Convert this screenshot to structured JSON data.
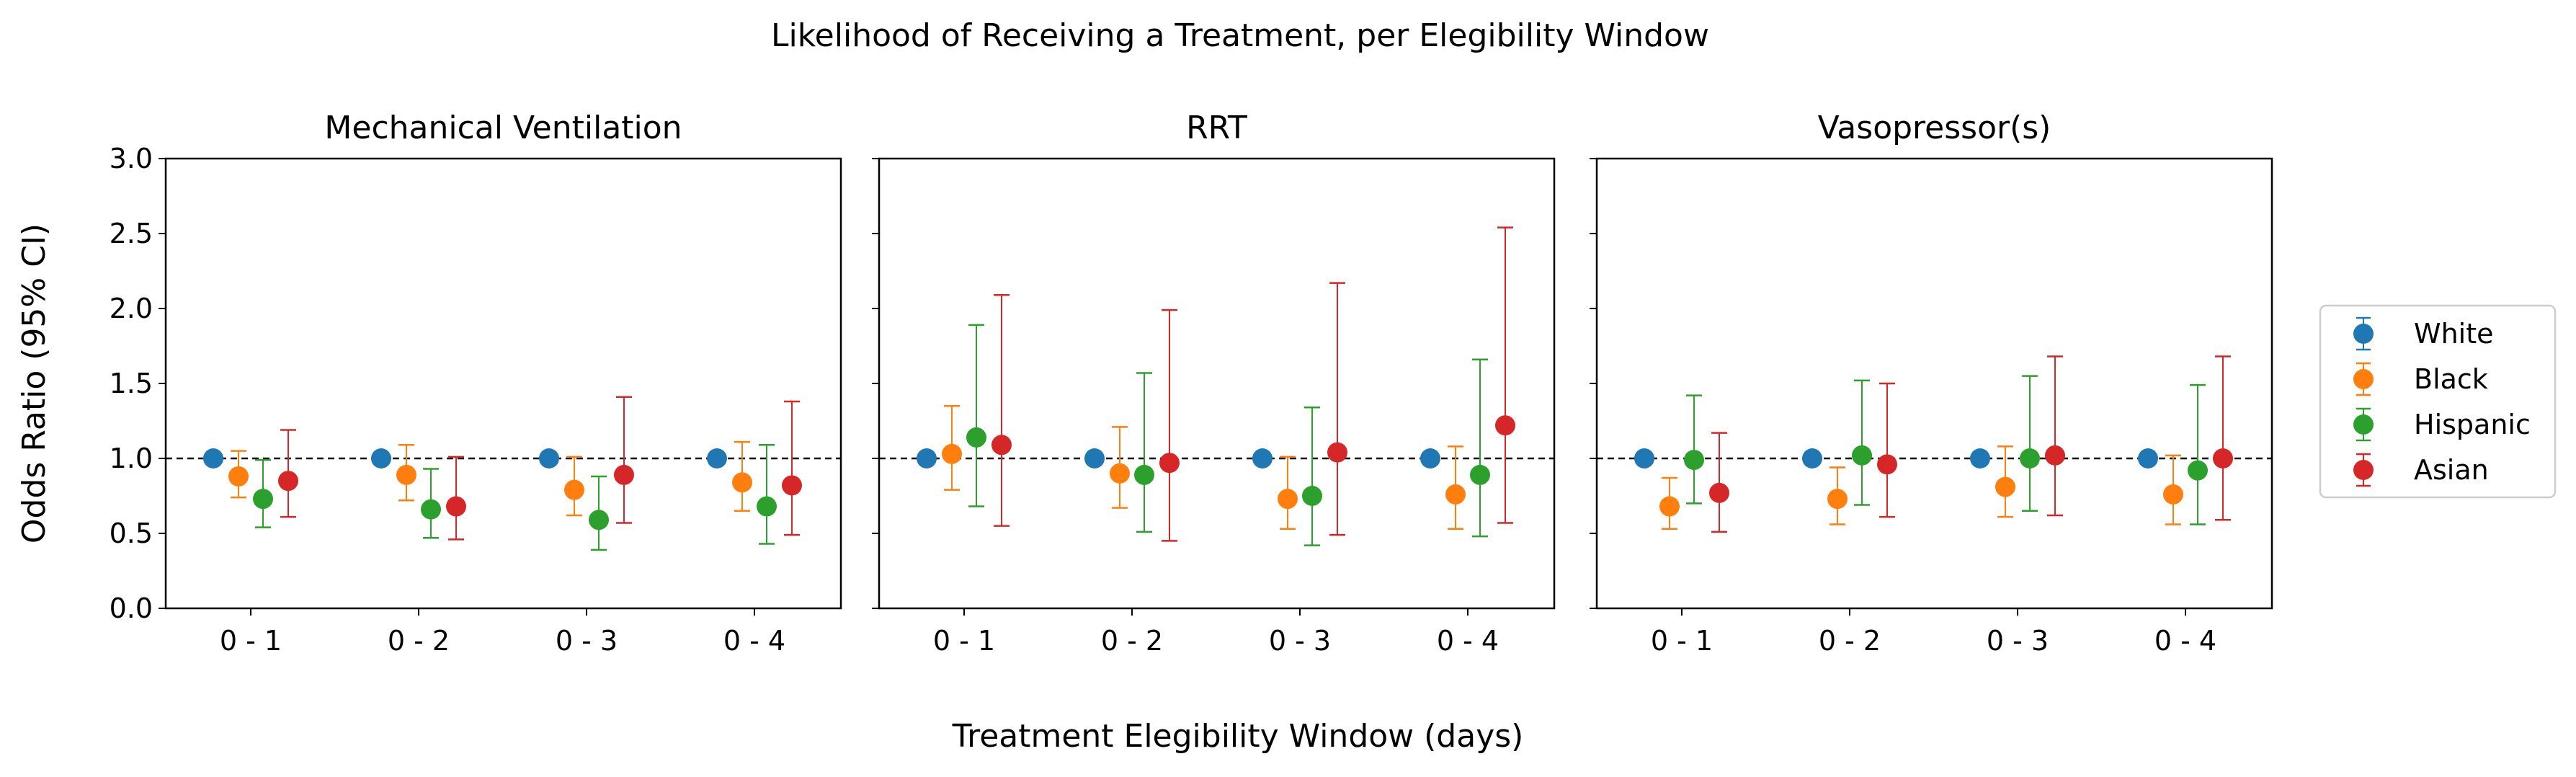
{
  "title": "Likelihood of Receiving a Treatment, per Elegibility Window",
  "xlabel": "Treatment Elegibility Window (days)",
  "ylabel": "Odds Ratio (95% CI)",
  "colors": {
    "White": "#1f77b4",
    "Black": "#ff7f0e",
    "Hispanic": "#2ca02c",
    "Asian": "#d62728"
  },
  "chart_data": [
    {
      "type": "scatter",
      "title": "Mechanical Ventilation",
      "categories": [
        "0 - 1",
        "0 - 2",
        "0 - 3",
        "0 - 4"
      ],
      "ylim": [
        0,
        3
      ],
      "yticks": [
        "0.0",
        "0.5",
        "1.0",
        "1.5",
        "2.0",
        "2.5",
        "3.0"
      ],
      "reference_line": 1.0,
      "series": [
        {
          "name": "White",
          "values": [
            1.0,
            1.0,
            1.0,
            1.0
          ],
          "lower": [
            1.0,
            1.0,
            1.0,
            1.0
          ],
          "upper": [
            1.0,
            1.0,
            1.0,
            1.0
          ]
        },
        {
          "name": "Black",
          "values": [
            0.88,
            0.89,
            0.79,
            0.84
          ],
          "lower": [
            0.74,
            0.72,
            0.62,
            0.65
          ],
          "upper": [
            1.05,
            1.09,
            1.01,
            1.11
          ]
        },
        {
          "name": "Hispanic",
          "values": [
            0.73,
            0.66,
            0.59,
            0.68
          ],
          "lower": [
            0.54,
            0.47,
            0.39,
            0.43
          ],
          "upper": [
            0.99,
            0.93,
            0.88,
            1.09
          ]
        },
        {
          "name": "Asian",
          "values": [
            0.85,
            0.68,
            0.89,
            0.82
          ],
          "lower": [
            0.61,
            0.46,
            0.57,
            0.49
          ],
          "upper": [
            1.19,
            1.01,
            1.41,
            1.38
          ]
        }
      ]
    },
    {
      "type": "scatter",
      "title": "RRT",
      "categories": [
        "0 - 1",
        "0 - 2",
        "0 - 3",
        "0 - 4"
      ],
      "ylim": [
        0,
        3
      ],
      "reference_line": 1.0,
      "series": [
        {
          "name": "White",
          "values": [
            1.0,
            1.0,
            1.0,
            1.0
          ],
          "lower": [
            1.0,
            1.0,
            1.0,
            1.0
          ],
          "upper": [
            1.0,
            1.0,
            1.0,
            1.0
          ]
        },
        {
          "name": "Black",
          "values": [
            1.03,
            0.9,
            0.73,
            0.76
          ],
          "lower": [
            0.79,
            0.67,
            0.53,
            0.53
          ],
          "upper": [
            1.35,
            1.21,
            1.01,
            1.08
          ]
        },
        {
          "name": "Hispanic",
          "values": [
            1.14,
            0.89,
            0.75,
            0.89
          ],
          "lower": [
            0.68,
            0.51,
            0.42,
            0.48
          ],
          "upper": [
            1.89,
            1.57,
            1.34,
            1.66
          ]
        },
        {
          "name": "Asian",
          "values": [
            1.09,
            0.97,
            1.04,
            1.22
          ],
          "lower": [
            0.55,
            0.45,
            0.49,
            0.57
          ],
          "upper": [
            2.09,
            1.99,
            2.17,
            2.54
          ]
        }
      ]
    },
    {
      "type": "scatter",
      "title": "Vasopressor(s)",
      "categories": [
        "0 - 1",
        "0 - 2",
        "0 - 3",
        "0 - 4"
      ],
      "ylim": [
        0,
        3
      ],
      "reference_line": 1.0,
      "series": [
        {
          "name": "White",
          "values": [
            1.0,
            1.0,
            1.0,
            1.0
          ],
          "lower": [
            1.0,
            1.0,
            1.0,
            1.0
          ],
          "upper": [
            1.0,
            1.0,
            1.0,
            1.0
          ]
        },
        {
          "name": "Black",
          "values": [
            0.68,
            0.73,
            0.81,
            0.76
          ],
          "lower": [
            0.53,
            0.56,
            0.61,
            0.56
          ],
          "upper": [
            0.87,
            0.94,
            1.08,
            1.02
          ]
        },
        {
          "name": "Hispanic",
          "values": [
            0.99,
            1.02,
            1.0,
            0.92
          ],
          "lower": [
            0.7,
            0.69,
            0.65,
            0.56
          ],
          "upper": [
            1.42,
            1.52,
            1.55,
            1.49
          ]
        },
        {
          "name": "Asian",
          "values": [
            0.77,
            0.96,
            1.02,
            1.0
          ],
          "lower": [
            0.51,
            0.61,
            0.62,
            0.59
          ],
          "upper": [
            1.17,
            1.5,
            1.68,
            1.68
          ]
        }
      ]
    }
  ],
  "legend": {
    "position": "right",
    "items": [
      "White",
      "Black",
      "Hispanic",
      "Asian"
    ]
  }
}
